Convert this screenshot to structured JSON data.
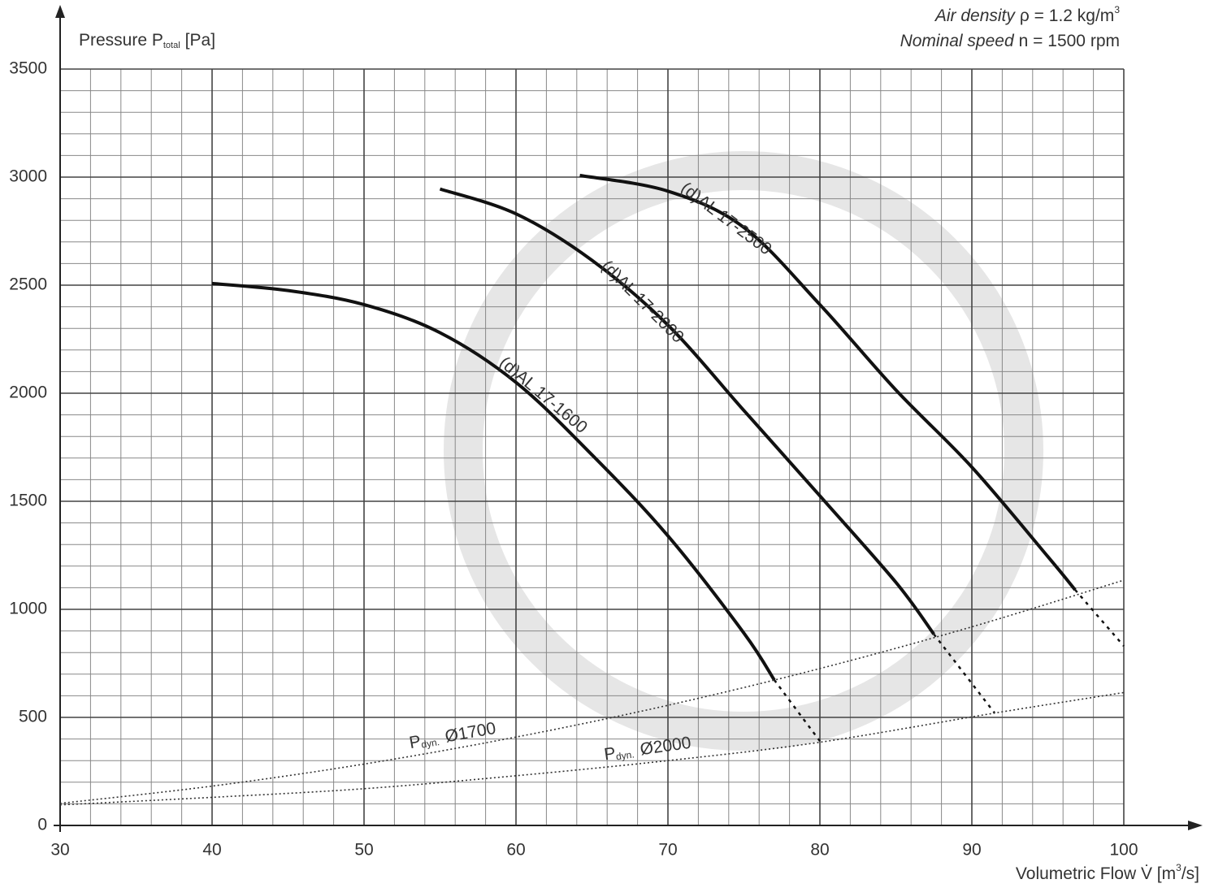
{
  "chart_data": {
    "type": "line",
    "title": {
      "main": "Pressure P",
      "sub": "total",
      "unit": "[Pa]"
    },
    "xlabel": {
      "main": "Volumetric Flow V̇ [m",
      "sup": "3",
      "end": "/s]"
    },
    "annotations": [
      {
        "italic": "Air density",
        "text": "ρ = 1.2 kg/m",
        "sup": "3"
      },
      {
        "italic": "Nominal speed",
        "text": "n = 1500 rpm"
      }
    ],
    "xlim": [
      30,
      100
    ],
    "ylim": [
      0,
      3500
    ],
    "xticks": [
      30,
      40,
      50,
      60,
      70,
      80,
      90,
      100
    ],
    "yticks": [
      0,
      500,
      1000,
      1500,
      2000,
      2500,
      3000,
      3500
    ],
    "minor_xticks": [
      32,
      34,
      36,
      38,
      42,
      44,
      46,
      48,
      52,
      54,
      56,
      58,
      62,
      64,
      66,
      68,
      72,
      74,
      76,
      78,
      82,
      84,
      86,
      88,
      92,
      94,
      96,
      98
    ],
    "minor_yticks": [
      100,
      200,
      300,
      400,
      600,
      700,
      800,
      900,
      1100,
      1200,
      1300,
      1400,
      1600,
      1700,
      1800,
      1900,
      2100,
      2200,
      2300,
      2400,
      2600,
      2700,
      2800,
      2900,
      3100,
      3200,
      3300,
      3400
    ],
    "grid": true,
    "series": [
      {
        "name": "(d)AL 17-1600",
        "color": "#111111",
        "x": [
          40,
          45,
          50,
          55,
          60,
          65,
          70,
          75,
          77
        ],
        "values": [
          2508,
          2475,
          2410,
          2280,
          2050,
          1715,
          1340,
          890,
          673
        ],
        "extension_x": [
          77,
          80
        ],
        "extension_values": [
          673,
          390
        ]
      },
      {
        "name": "(d)AL 17-2000",
        "color": "#111111",
        "x": [
          55,
          60,
          65,
          70,
          75,
          80,
          85,
          87.5
        ],
        "values": [
          2945,
          2830,
          2615,
          2315,
          1920,
          1525,
          1125,
          885
        ],
        "extension_x": [
          87.5,
          91.5
        ],
        "extension_values": [
          885,
          520
        ]
      },
      {
        "name": "(d)AL 17-2500",
        "color": "#111111",
        "x": [
          64.2,
          70,
          75,
          80,
          85,
          90,
          95,
          96.8
        ],
        "values": [
          3008,
          2935,
          2767,
          2410,
          2015,
          1658,
          1244,
          1090
        ],
        "extension_x": [
          96.8,
          100
        ],
        "extension_values": [
          1090,
          830
        ]
      },
      {
        "label": {
          "symbol": "P",
          "sub": "dyn.",
          "size": "Ø1700"
        },
        "color": "#333333",
        "style": "dotted",
        "x": [
          30,
          40,
          50,
          60,
          70,
          80,
          90,
          100
        ],
        "values": [
          102,
          182,
          284,
          409,
          556,
          726,
          919,
          1135
        ]
      },
      {
        "label": {
          "symbol": "P",
          "sub": "dyn.",
          "size": "Ø2000"
        },
        "color": "#333333",
        "style": "dotted",
        "x": [
          30,
          40,
          50,
          60,
          70,
          80,
          91.5,
          100
        ],
        "values": [
          95,
          130,
          170,
          230,
          300,
          385,
          520,
          615
        ]
      }
    ]
  }
}
